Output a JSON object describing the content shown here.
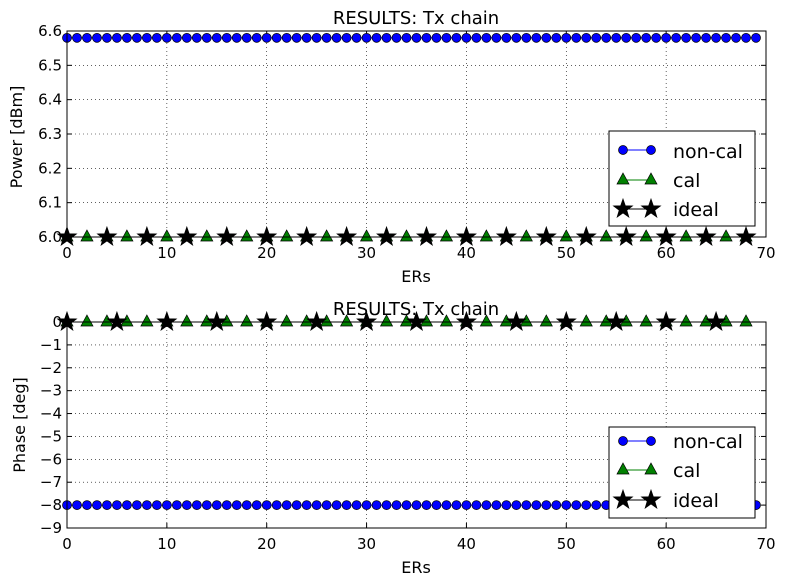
{
  "chart_data": [
    {
      "type": "line",
      "title": "RESULTS: Tx chain",
      "xlabel": "ERs",
      "ylabel": "Power [dBm]",
      "xlim": [
        0,
        70
      ],
      "ylim": [
        6.0,
        6.6
      ],
      "xticks": [
        "0",
        "10",
        "20",
        "30",
        "40",
        "50",
        "60",
        "70"
      ],
      "yticks": [
        "6.0",
        "6.1",
        "6.2",
        "6.3",
        "6.4",
        "6.5",
        "6.6"
      ],
      "grid": true,
      "legend_position": "lower-right",
      "series": [
        {
          "name": "non-cal",
          "marker": "circle",
          "color": "#0000ff",
          "x_start": 0,
          "x_step": 1,
          "x_end": 69,
          "value": 6.58
        },
        {
          "name": "cal",
          "marker": "triangle",
          "color": "#008000",
          "x_start": 0,
          "x_step": 2,
          "x_end": 68,
          "value": 6.0
        },
        {
          "name": "ideal",
          "marker": "star",
          "color": "#000000",
          "x_start": 0,
          "x_step": 4,
          "x_end": 68,
          "value": 6.0
        }
      ]
    },
    {
      "type": "line",
      "title": "RESULTS: Tx chain",
      "xlabel": "ERs",
      "ylabel": "Phase [deg]",
      "xlim": [
        0,
        70
      ],
      "ylim": [
        -9,
        0
      ],
      "xticks": [
        "0",
        "10",
        "20",
        "30",
        "40",
        "50",
        "60",
        "70"
      ],
      "yticks": [
        "0",
        "−1",
        "−2",
        "−3",
        "−4",
        "−5",
        "−6",
        "−7",
        "−8",
        "−9"
      ],
      "grid": true,
      "legend_position": "lower-right",
      "series": [
        {
          "name": "non-cal",
          "marker": "circle",
          "color": "#0000ff",
          "x_start": 0,
          "x_step": 1,
          "x_end": 69,
          "value": -8.0
        },
        {
          "name": "cal",
          "marker": "triangle",
          "color": "#008000",
          "x_start": 0,
          "x_step": 2,
          "x_end": 68,
          "value": 0.0
        },
        {
          "name": "ideal",
          "marker": "star",
          "color": "#000000",
          "x_start": 0,
          "x_step": 5,
          "x_end": 65,
          "value": 0.0
        }
      ]
    }
  ]
}
